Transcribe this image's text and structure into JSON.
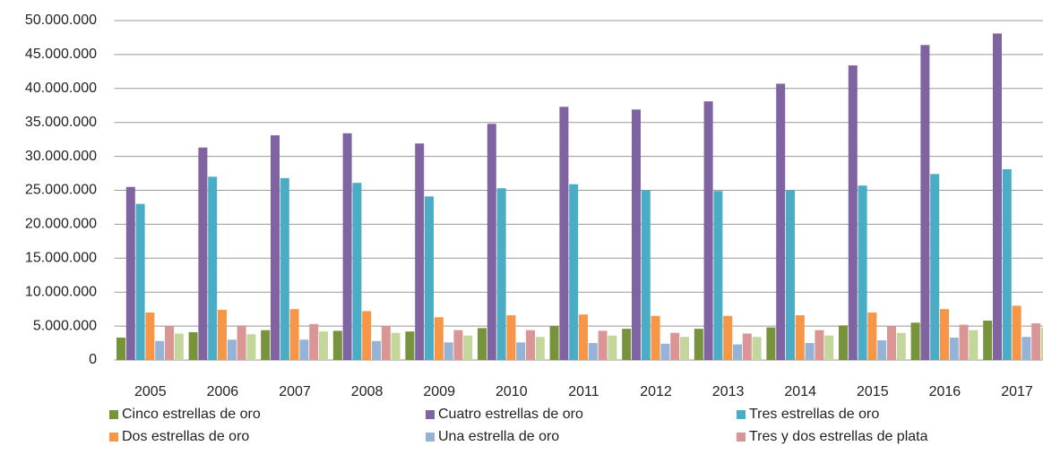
{
  "chart_data": {
    "type": "bar",
    "categories": [
      "2005",
      "2006",
      "2007",
      "2008",
      "2009",
      "2010",
      "2011",
      "2012",
      "2013",
      "2014",
      "2015",
      "2016",
      "2017"
    ],
    "series": [
      {
        "name": "Cinco estrellas de oro",
        "color": "#77933c",
        "values": [
          3300000,
          4100000,
          4400000,
          4300000,
          4200000,
          4700000,
          5000000,
          4600000,
          4600000,
          4800000,
          5100000,
          5500000,
          5800000
        ]
      },
      {
        "name": "Cuatro estrellas de oro",
        "color": "#8064a2",
        "values": [
          25500000,
          31300000,
          33100000,
          33400000,
          31900000,
          34800000,
          37300000,
          36900000,
          38100000,
          40700000,
          43400000,
          46400000,
          48100000
        ]
      },
      {
        "name": "Tres estrellas de oro",
        "color": "#4bacc6",
        "values": [
          23000000,
          27000000,
          26800000,
          26100000,
          24100000,
          25300000,
          25900000,
          25000000,
          24900000,
          25000000,
          25700000,
          27400000,
          28100000
        ]
      },
      {
        "name": "Dos estrellas de oro",
        "color": "#f79646",
        "values": [
          7000000,
          7400000,
          7500000,
          7200000,
          6300000,
          6600000,
          6700000,
          6500000,
          6500000,
          6600000,
          7000000,
          7500000,
          8000000
        ]
      },
      {
        "name": "Una estrella de oro",
        "color": "#95b3d7",
        "values": [
          2800000,
          3000000,
          3000000,
          2800000,
          2600000,
          2600000,
          2500000,
          2400000,
          2300000,
          2500000,
          2900000,
          3300000,
          3400000
        ]
      },
      {
        "name": "Tres y dos estrellas de plata",
        "color": "#d99694",
        "values": [
          5000000,
          5100000,
          5300000,
          5000000,
          4400000,
          4400000,
          4300000,
          4000000,
          3900000,
          4400000,
          5000000,
          5200000,
          5400000
        ]
      },
      {
        "color": "#c3d69b",
        "values": [
          3900000,
          3800000,
          4200000,
          4000000,
          3600000,
          3400000,
          3600000,
          3400000,
          3400000,
          3600000,
          4000000,
          4400000,
          4700000
        ]
      }
    ],
    "ylim": [
      0,
      50000000
    ],
    "yticks": [
      0,
      {
        "value": 5000000,
        "label": "5.000.000"
      },
      {
        "value": 10000000,
        "label": "10.000.000"
      },
      {
        "value": 15000000,
        "label": "15.000.000"
      },
      {
        "value": 20000000,
        "label": "20.000.000"
      },
      {
        "value": 25000000,
        "label": "25.000.000"
      },
      {
        "value": 30000000,
        "label": "30.000.000"
      },
      {
        "value": 35000000,
        "label": "35.000.000"
      },
      {
        "value": 40000000,
        "label": "40.000.000"
      },
      {
        "value": 45000000,
        "label": "45.000.000"
      },
      {
        "value": 50000000,
        "label": "50.000.000"
      }
    ],
    "grid": true,
    "legend": "bottom"
  }
}
